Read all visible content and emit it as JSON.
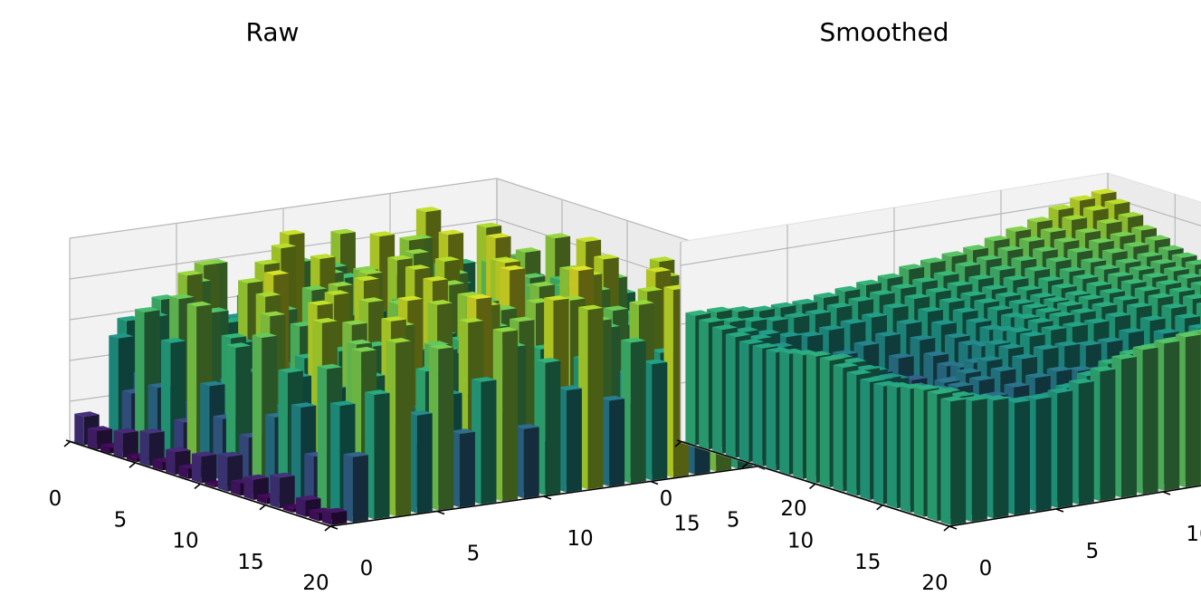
{
  "figure": {
    "background": "#ffffff",
    "colormap": "viridis"
  },
  "chart_data": [
    {
      "type": "bar3d",
      "title": "Raw",
      "xlabel": "",
      "ylabel": "",
      "zlabel": "",
      "xlim": [
        0,
        20
      ],
      "ylim": [
        0,
        20
      ],
      "zlim": [
        0,
        1.0
      ],
      "xticks": [
        "0",
        "5",
        "10",
        "15",
        "20"
      ],
      "yticks": [
        "0",
        "5",
        "10",
        "15",
        "20"
      ],
      "zticks": [
        "0.0",
        "0.2",
        "0.4",
        "0.6",
        "0.8",
        "1.0"
      ],
      "grid": true,
      "shape": [
        20,
        20
      ],
      "values": [
        [
          0.14,
          0.04,
          0.58,
          0.09,
          0.31,
          0.37,
          0.8,
          0.52,
          0.68,
          0.23,
          0.75,
          0.19,
          0.86,
          0.44,
          0.62,
          0.33,
          0.91,
          0.41,
          0.27,
          0.55
        ],
        [
          0.09,
          0.53,
          0.33,
          0.69,
          0.12,
          0.83,
          0.38,
          0.64,
          0.21,
          0.92,
          0.48,
          0.73,
          0.29,
          0.57,
          0.18,
          0.81,
          0.36,
          0.66,
          0.43,
          0.24
        ],
        [
          0.03,
          0.28,
          0.64,
          0.42,
          0.78,
          0.15,
          0.56,
          0.34,
          0.89,
          0.47,
          0.11,
          0.7,
          0.52,
          0.35,
          0.84,
          0.26,
          0.6,
          0.13,
          0.77,
          0.45
        ],
        [
          0.12,
          0.7,
          0.21,
          0.85,
          0.37,
          0.59,
          0.07,
          0.76,
          0.44,
          0.31,
          0.68,
          0.05,
          0.91,
          0.22,
          0.49,
          0.72,
          0.18,
          0.88,
          0.34,
          0.61
        ],
        [
          0.02,
          0.35,
          0.77,
          0.18,
          0.62,
          0.29,
          0.88,
          0.41,
          0.14,
          0.79,
          0.36,
          0.57,
          0.24,
          0.83,
          0.11,
          0.65,
          0.47,
          0.3,
          0.74,
          0.2
        ],
        [
          0.16,
          0.59,
          0.27,
          0.71,
          0.45,
          0.06,
          0.67,
          0.23,
          0.9,
          0.38,
          0.81,
          0.28,
          0.63,
          0.17,
          0.93,
          0.4,
          0.76,
          0.09,
          0.55,
          0.84
        ],
        [
          0.04,
          0.22,
          0.74,
          0.39,
          0.86,
          0.32,
          0.5,
          0.78,
          0.27,
          0.64,
          0.13,
          0.87,
          0.42,
          0.7,
          0.33,
          0.58,
          0.21,
          0.82,
          0.46,
          0.37
        ],
        [
          0.11,
          0.81,
          0.3,
          0.6,
          0.19,
          0.73,
          0.43,
          0.15,
          0.66,
          0.85,
          0.34,
          0.51,
          0.08,
          0.79,
          0.26,
          0.94,
          0.52,
          0.29,
          0.69,
          0.12
        ],
        [
          0.05,
          0.44,
          0.66,
          0.25,
          0.94,
          0.48,
          0.2,
          0.84,
          0.37,
          0.55,
          0.72,
          0.24,
          0.89,
          0.31,
          0.61,
          0.16,
          0.75,
          0.57,
          0.23,
          0.8
        ],
        [
          0.13,
          0.3,
          0.51,
          0.87,
          0.28,
          0.65,
          0.79,
          0.33,
          0.58,
          0.19,
          0.9,
          0.46,
          0.35,
          0.67,
          0.88,
          0.42,
          0.27,
          0.71,
          0.92,
          0.36
        ],
        [
          0.01,
          0.67,
          0.19,
          0.46,
          0.73,
          0.21,
          0.57,
          0.91,
          0.12,
          0.71,
          0.4,
          0.83,
          0.56,
          0.2,
          0.47,
          0.76,
          0.63,
          0.38,
          0.14,
          0.67
        ],
        [
          0.17,
          0.25,
          0.83,
          0.34,
          0.52,
          0.89,
          0.3,
          0.47,
          0.8,
          0.36,
          0.62,
          0.17,
          0.75,
          0.93,
          0.39,
          0.29,
          0.85,
          0.5,
          0.78,
          0.26
        ],
        [
          0.06,
          0.76,
          0.4,
          0.63,
          0.16,
          0.44,
          0.86,
          0.26,
          0.59,
          0.92,
          0.27,
          0.68,
          0.38,
          0.54,
          0.82,
          0.64,
          0.32,
          0.91,
          0.41,
          0.58
        ],
        [
          0.1,
          0.39,
          0.57,
          0.91,
          0.67,
          0.35,
          0.61,
          0.74,
          0.22,
          0.49,
          0.85,
          0.43,
          0.95,
          0.28,
          0.6,
          0.37,
          0.79,
          0.24,
          0.63,
          0.89
        ],
        [
          0.03,
          0.63,
          0.24,
          0.52,
          0.82,
          0.7,
          0.18,
          0.55,
          0.86,
          0.67,
          0.33,
          0.79,
          0.21,
          0.73,
          0.45,
          0.9,
          0.53,
          0.68,
          0.35,
          0.47
        ],
        [
          0.15,
          0.48,
          0.88,
          0.29,
          0.41,
          0.57,
          0.93,
          0.37,
          0.64,
          0.26,
          0.74,
          0.59,
          0.83,
          0.39,
          0.96,
          0.22,
          0.66,
          0.44,
          0.87,
          0.31
        ],
        [
          0.02,
          0.26,
          0.45,
          0.78,
          0.58,
          0.84,
          0.42,
          0.69,
          0.31,
          0.88,
          0.51,
          0.36,
          0.62,
          0.85,
          0.3,
          0.77,
          0.4,
          0.93,
          0.56,
          0.72
        ],
        [
          0.08,
          0.71,
          0.35,
          0.64,
          0.9,
          0.27,
          0.75,
          0.49,
          0.95,
          0.43,
          0.81,
          0.66,
          0.29,
          0.58,
          0.72,
          0.48,
          0.87,
          0.33,
          0.76,
          0.51
        ],
        [
          0.04,
          0.55,
          0.8,
          0.42,
          0.31,
          0.66,
          0.53,
          0.87,
          0.4,
          0.72,
          0.23,
          0.92,
          0.47,
          0.79,
          0.36,
          0.84,
          0.59,
          0.7,
          0.45,
          0.94
        ],
        [
          0.06,
          0.32,
          0.61,
          0.85,
          0.48,
          0.79,
          0.36,
          0.6,
          0.83,
          0.34,
          0.65,
          0.5,
          0.88,
          0.42,
          0.69,
          0.57,
          0.92,
          0.38,
          0.81,
          0.63
        ]
      ]
    },
    {
      "type": "bar3d",
      "title": "Smoothed",
      "xlabel": "",
      "ylabel": "",
      "zlabel": "",
      "xlim": [
        0,
        20
      ],
      "ylim": [
        0,
        20
      ],
      "zlim": [
        0,
        0.68
      ],
      "xticks": [
        "0",
        "5",
        "10",
        "15",
        "20"
      ],
      "yticks": [
        "0",
        "5",
        "10",
        "15",
        "20"
      ],
      "zticks": [
        "0.0",
        "0.2",
        "0.4",
        "0.6"
      ],
      "grid": true,
      "shape": [
        20,
        20
      ],
      "values": [
        [
          0.44,
          0.44,
          0.43,
          0.42,
          0.42,
          0.42,
          0.43,
          0.44,
          0.45,
          0.46,
          0.48,
          0.49,
          0.5,
          0.51,
          0.53,
          0.55,
          0.57,
          0.6,
          0.62,
          0.63
        ],
        [
          0.43,
          0.42,
          0.41,
          0.4,
          0.4,
          0.4,
          0.41,
          0.42,
          0.43,
          0.44,
          0.45,
          0.46,
          0.48,
          0.49,
          0.51,
          0.53,
          0.55,
          0.58,
          0.6,
          0.61
        ],
        [
          0.42,
          0.4,
          0.38,
          0.36,
          0.35,
          0.36,
          0.37,
          0.38,
          0.4,
          0.42,
          0.43,
          0.44,
          0.45,
          0.47,
          0.49,
          0.51,
          0.53,
          0.55,
          0.57,
          0.58
        ],
        [
          0.41,
          0.39,
          0.35,
          0.31,
          0.29,
          0.29,
          0.31,
          0.33,
          0.36,
          0.39,
          0.41,
          0.42,
          0.43,
          0.45,
          0.47,
          0.49,
          0.51,
          0.53,
          0.54,
          0.55
        ],
        [
          0.4,
          0.37,
          0.31,
          0.25,
          0.2,
          0.2,
          0.23,
          0.27,
          0.32,
          0.36,
          0.39,
          0.41,
          0.42,
          0.43,
          0.45,
          0.47,
          0.49,
          0.51,
          0.52,
          0.53
        ],
        [
          0.4,
          0.36,
          0.29,
          0.2,
          0.13,
          0.11,
          0.15,
          0.21,
          0.28,
          0.33,
          0.37,
          0.4,
          0.41,
          0.42,
          0.44,
          0.46,
          0.48,
          0.49,
          0.5,
          0.51
        ],
        [
          0.4,
          0.36,
          0.28,
          0.18,
          0.1,
          0.07,
          0.11,
          0.18,
          0.26,
          0.32,
          0.36,
          0.39,
          0.41,
          0.42,
          0.43,
          0.45,
          0.47,
          0.48,
          0.49,
          0.5
        ],
        [
          0.41,
          0.37,
          0.3,
          0.21,
          0.14,
          0.11,
          0.14,
          0.2,
          0.27,
          0.33,
          0.37,
          0.4,
          0.41,
          0.42,
          0.43,
          0.44,
          0.46,
          0.47,
          0.48,
          0.49
        ],
        [
          0.42,
          0.39,
          0.33,
          0.26,
          0.21,
          0.19,
          0.21,
          0.25,
          0.3,
          0.35,
          0.38,
          0.4,
          0.41,
          0.41,
          0.42,
          0.43,
          0.45,
          0.46,
          0.47,
          0.48
        ],
        [
          0.43,
          0.41,
          0.36,
          0.31,
          0.27,
          0.26,
          0.27,
          0.29,
          0.32,
          0.35,
          0.38,
          0.39,
          0.39,
          0.39,
          0.4,
          0.42,
          0.44,
          0.45,
          0.46,
          0.47
        ],
        [
          0.43,
          0.41,
          0.37,
          0.33,
          0.29,
          0.27,
          0.27,
          0.28,
          0.3,
          0.33,
          0.35,
          0.35,
          0.34,
          0.34,
          0.36,
          0.39,
          0.42,
          0.44,
          0.45,
          0.46
        ],
        [
          0.42,
          0.4,
          0.36,
          0.31,
          0.27,
          0.24,
          0.23,
          0.24,
          0.26,
          0.28,
          0.29,
          0.28,
          0.27,
          0.28,
          0.31,
          0.36,
          0.4,
          0.43,
          0.44,
          0.45
        ],
        [
          0.41,
          0.38,
          0.33,
          0.27,
          0.22,
          0.19,
          0.18,
          0.19,
          0.21,
          0.23,
          0.23,
          0.21,
          0.2,
          0.22,
          0.27,
          0.33,
          0.38,
          0.41,
          0.43,
          0.44
        ],
        [
          0.4,
          0.37,
          0.31,
          0.24,
          0.19,
          0.16,
          0.15,
          0.16,
          0.18,
          0.2,
          0.2,
          0.18,
          0.17,
          0.2,
          0.26,
          0.33,
          0.38,
          0.41,
          0.42,
          0.43
        ],
        [
          0.4,
          0.37,
          0.31,
          0.24,
          0.19,
          0.16,
          0.16,
          0.17,
          0.19,
          0.21,
          0.21,
          0.19,
          0.19,
          0.23,
          0.29,
          0.36,
          0.4,
          0.42,
          0.43,
          0.43
        ],
        [
          0.41,
          0.38,
          0.33,
          0.27,
          0.23,
          0.21,
          0.21,
          0.23,
          0.25,
          0.27,
          0.27,
          0.26,
          0.27,
          0.31,
          0.37,
          0.43,
          0.46,
          0.47,
          0.46,
          0.45
        ],
        [
          0.42,
          0.4,
          0.36,
          0.31,
          0.28,
          0.27,
          0.28,
          0.3,
          0.32,
          0.34,
          0.35,
          0.35,
          0.36,
          0.4,
          0.45,
          0.5,
          0.52,
          0.51,
          0.49,
          0.47
        ],
        [
          0.43,
          0.41,
          0.38,
          0.35,
          0.33,
          0.32,
          0.34,
          0.36,
          0.39,
          0.41,
          0.42,
          0.43,
          0.44,
          0.47,
          0.51,
          0.54,
          0.55,
          0.53,
          0.5,
          0.47
        ],
        [
          0.43,
          0.41,
          0.39,
          0.37,
          0.36,
          0.36,
          0.38,
          0.41,
          0.44,
          0.46,
          0.47,
          0.48,
          0.49,
          0.51,
          0.53,
          0.55,
          0.55,
          0.52,
          0.49,
          0.46
        ],
        [
          0.42,
          0.41,
          0.4,
          0.38,
          0.38,
          0.39,
          0.41,
          0.44,
          0.47,
          0.49,
          0.5,
          0.51,
          0.51,
          0.52,
          0.53,
          0.54,
          0.53,
          0.5,
          0.46,
          0.43
        ]
      ]
    }
  ]
}
